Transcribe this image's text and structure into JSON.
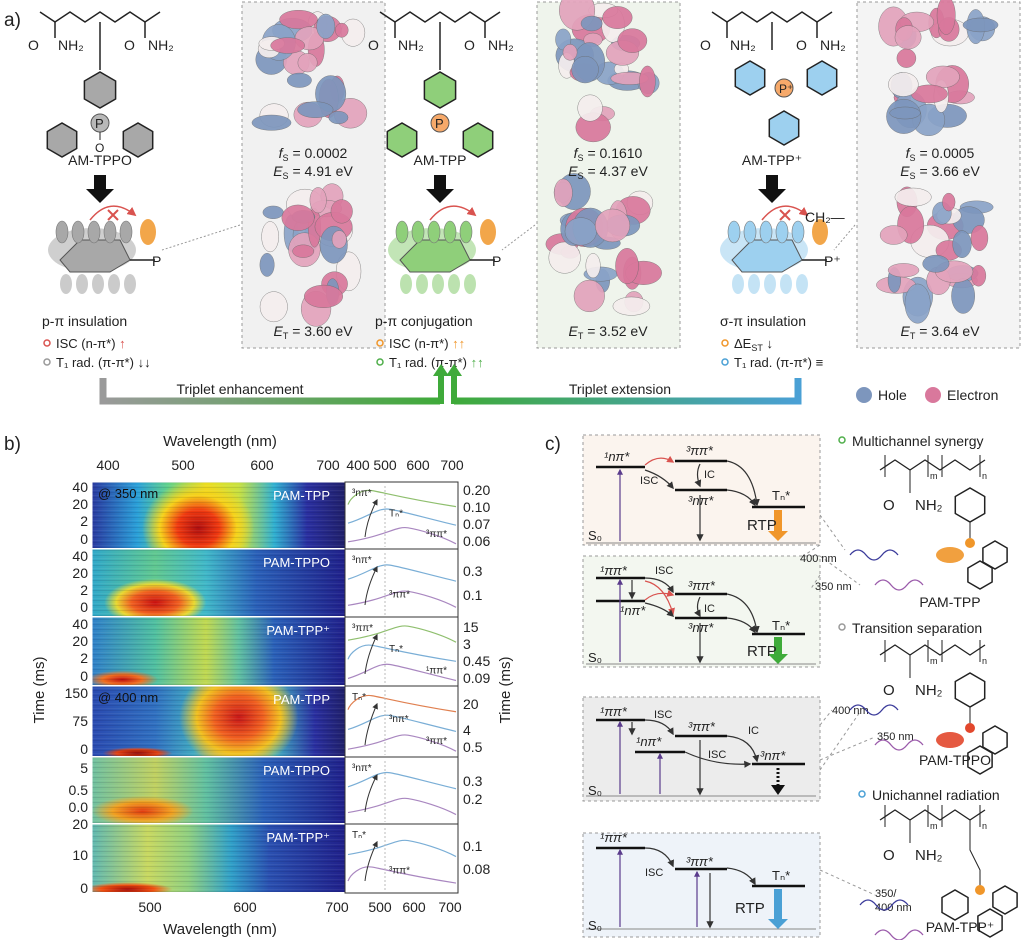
{
  "panel_labels": {
    "a": "a)",
    "b": "b)",
    "c": "c)"
  },
  "a": {
    "symbols": {
      "f": "f",
      "E": "E",
      "S": "S",
      "T": "T"
    },
    "molecules": [
      {
        "name": "AM-TPPO",
        "amide_left": "NH₂",
        "amide_right": "NH₂",
        "o": "O",
        "p": "P",
        "o_bottom": "O",
        "fs_value": " = 0.0002",
        "es_value": " = 4.91 eV",
        "et_value": " = 3.60 eV",
        "interaction": "p-π insulation",
        "bullet1": "ISC (n-π*)",
        "bullet1_arrow": "↑",
        "bullet2": "T₁ rad. (π-π*)",
        "bullet2_arrow": "↓↓"
      },
      {
        "name": "AM-TPP",
        "amide_left": "NH₂",
        "amide_right": "NH₂",
        "o": "O",
        "p": "P",
        "fs_value": " = 0.1610",
        "es_value": " = 4.37 eV",
        "et_value": " = 3.52 eV",
        "interaction": "p-π conjugation",
        "bullet1": "ISC (n-π*)",
        "bullet1_arrow": "↑↑",
        "bullet2": "T₁ rad. (π-π*)",
        "bullet2_arrow": "↑↑"
      },
      {
        "name": "AM-TPP⁺",
        "amide_left": "NH₂",
        "amide_right": "NH₂",
        "o": "O",
        "p": "P⁺",
        "ch2": "CH₂—",
        "fs_value": " = 0.0005",
        "es_value": " = 3.66 eV",
        "et_value": " = 3.64 eV",
        "interaction": "σ-π insulation",
        "bullet1": "ΔE",
        "bullet1_sub": "ST",
        "bullet1_arrow": "↓",
        "bullet2": "T₁ rad. (π-π*)",
        "bullet2_arrow": "≡"
      }
    ],
    "arrows": {
      "left": "Triplet enhancement",
      "right": "Triplet extension"
    },
    "legend": {
      "hole": "Hole",
      "electron": "Electron"
    },
    "colors": {
      "hole": "#7d96bd",
      "electron": "#d9789c",
      "tppo": "#9a9a9a",
      "tpp": "#4fae4a",
      "tppplus": "#4aa0d5",
      "orange": "#f0962a",
      "red": "#d9534f"
    }
  },
  "b": {
    "xlabel": "Wavelength (nm)",
    "ylabel": "Time (ms)",
    "top_ticks": [
      "400",
      "500",
      "600",
      "700"
    ],
    "spec_top_ticks": [
      "400",
      "500",
      "600",
      "700"
    ],
    "bottom_ticks": [
      "500",
      "600",
      "700"
    ],
    "spec_bottom_ticks": [
      "500",
      "600",
      "700"
    ],
    "rows": [
      {
        "label": "PAM-TPP",
        "excitation": "@ 350 nm",
        "left_ticks": [
          "40",
          "20",
          "2",
          "0"
        ],
        "right_ticks": [
          "0.20",
          "0.10",
          "0.07",
          "0.06"
        ],
        "annotations": [
          "³nπ*",
          "Tₙ*",
          "³ππ*"
        ]
      },
      {
        "label": "PAM-TPPO",
        "left_ticks": [
          "40",
          "20",
          "2",
          "0"
        ],
        "right_ticks": [
          "0.3",
          "0.1"
        ],
        "annotations": [
          "³nπ*",
          "³ππ*"
        ]
      },
      {
        "label": "PAM-TPP⁺",
        "left_ticks": [
          "40",
          "20",
          "2",
          "0"
        ],
        "right_ticks": [
          "15",
          "3",
          "0.45",
          "0.09"
        ],
        "annotations": [
          "³ππ*",
          "Tₙ*",
          "¹ππ*"
        ]
      },
      {
        "label": "PAM-TPP",
        "excitation": "@ 400 nm",
        "left_ticks": [
          "150",
          "75",
          "0"
        ],
        "right_ticks": [
          "20",
          "4",
          "0.5"
        ],
        "annotations": [
          "Tₙ*",
          "³nπ*",
          "³ππ*"
        ]
      },
      {
        "label": "PAM-TPPO",
        "left_ticks": [
          "5",
          "0.5",
          "0.0"
        ],
        "right_ticks": [
          "0.3",
          "0.2"
        ],
        "annotations": [
          "³nπ*"
        ]
      },
      {
        "label": "PAM-TPP⁺",
        "left_ticks": [
          "20",
          "10",
          "0"
        ],
        "right_ticks": [
          "0.1",
          "0.08"
        ],
        "annotations": [
          "Tₙ*",
          "³ππ*"
        ]
      }
    ]
  },
  "c": {
    "diagrams": [
      {
        "l1": "¹nπ*",
        "l2": "³ππ*",
        "l3": "³nπ*",
        "l4": "Tₙ*",
        "isc": "ISC",
        "ic": "IC",
        "rtp": "RTP",
        "ground": "S₀"
      },
      {
        "l1": "¹ππ*",
        "l1b": "¹nπ*",
        "l2": "³ππ*",
        "l3": "³nπ*",
        "l4": "Tₙ*",
        "isc": "ISC",
        "ic": "IC",
        "rtp": "RTP",
        "ground": "S₀"
      },
      {
        "l1": "¹ππ*",
        "l1b": "¹nπ*",
        "l2": "³ππ*",
        "l4": "³nπ*",
        "isc": "ISC",
        "isc2": "ISC",
        "ic": "IC",
        "ground": "S₀"
      },
      {
        "l1": "¹ππ*",
        "l2": "³ππ*",
        "l4": "Tₙ*",
        "isc": "ISC",
        "rtp": "RTP",
        "ground": "S₀"
      }
    ],
    "mechanisms": [
      {
        "title": "Multichannel synergy",
        "polymer": "PAM-TPP",
        "wl1": "400 nm",
        "wl2": "350 nm"
      },
      {
        "title": "Transition separation",
        "polymer": "PAM-TPPO",
        "wl1": "400 nm",
        "wl2": "350 nm"
      },
      {
        "title": "Unichannel radiation",
        "polymer": "PAM-TPP⁺",
        "wl1": "350/",
        "wl2": "400 nm"
      }
    ],
    "polymer_labels": {
      "m": "m",
      "n": "n",
      "o": "O",
      "nh2": "NH₂"
    }
  }
}
